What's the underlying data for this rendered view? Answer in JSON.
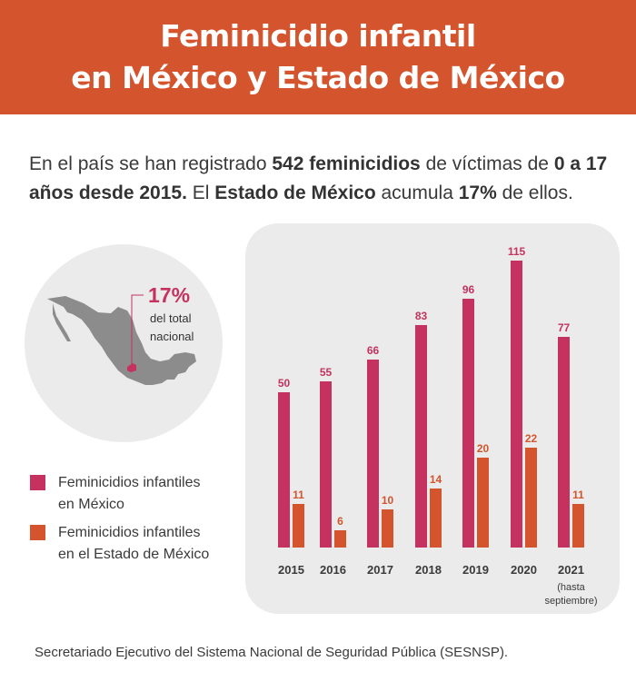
{
  "header": {
    "title_line1": "Feminicidio infantil",
    "title_line2": "en México y Estado de México"
  },
  "intro": {
    "p1": "En el país se han registrado ",
    "b1": "542 feminicidios",
    "p2": " de víctimas de ",
    "b2": "0 a 17 años desde 2015.",
    "p3": " El ",
    "b3": "Estado de México",
    "p4": " acumula ",
    "b4": "17%",
    "p5": " de ellos."
  },
  "map": {
    "percent": "17%",
    "caption_line1": "del total",
    "caption_line2": "nacional",
    "map_color": "#8c8c8c",
    "highlight_color": "#c5325f"
  },
  "source": "Secretariado Ejecutivo del Sistema Nacional de Seguridad Pública (SESNSP).",
  "chart_data": {
    "type": "bar",
    "title": "Feminicidio infantil en México y Estado de México",
    "categories": [
      "2015",
      "2016",
      "2017",
      "2018",
      "2019",
      "2020",
      "2021"
    ],
    "category_notes": {
      "2021": "(hasta septiembre)"
    },
    "series": [
      {
        "name": "Feminicidios infantiles en México",
        "legend_line1": "Feminicidios infantiles",
        "legend_line2": "en México",
        "color": "#c5325f",
        "values": [
          50,
          55,
          66,
          83,
          96,
          115,
          77
        ]
      },
      {
        "name": "Feminicidios infantiles en el Estado de México",
        "legend_line1": "Feminicidios infantiles",
        "legend_line2": "en el Estado de México",
        "color": "#d4542d",
        "values": [
          11,
          6,
          10,
          14,
          20,
          22,
          11
        ]
      }
    ],
    "xlabel": "",
    "ylabel": "",
    "grid": false,
    "legend": "left"
  }
}
